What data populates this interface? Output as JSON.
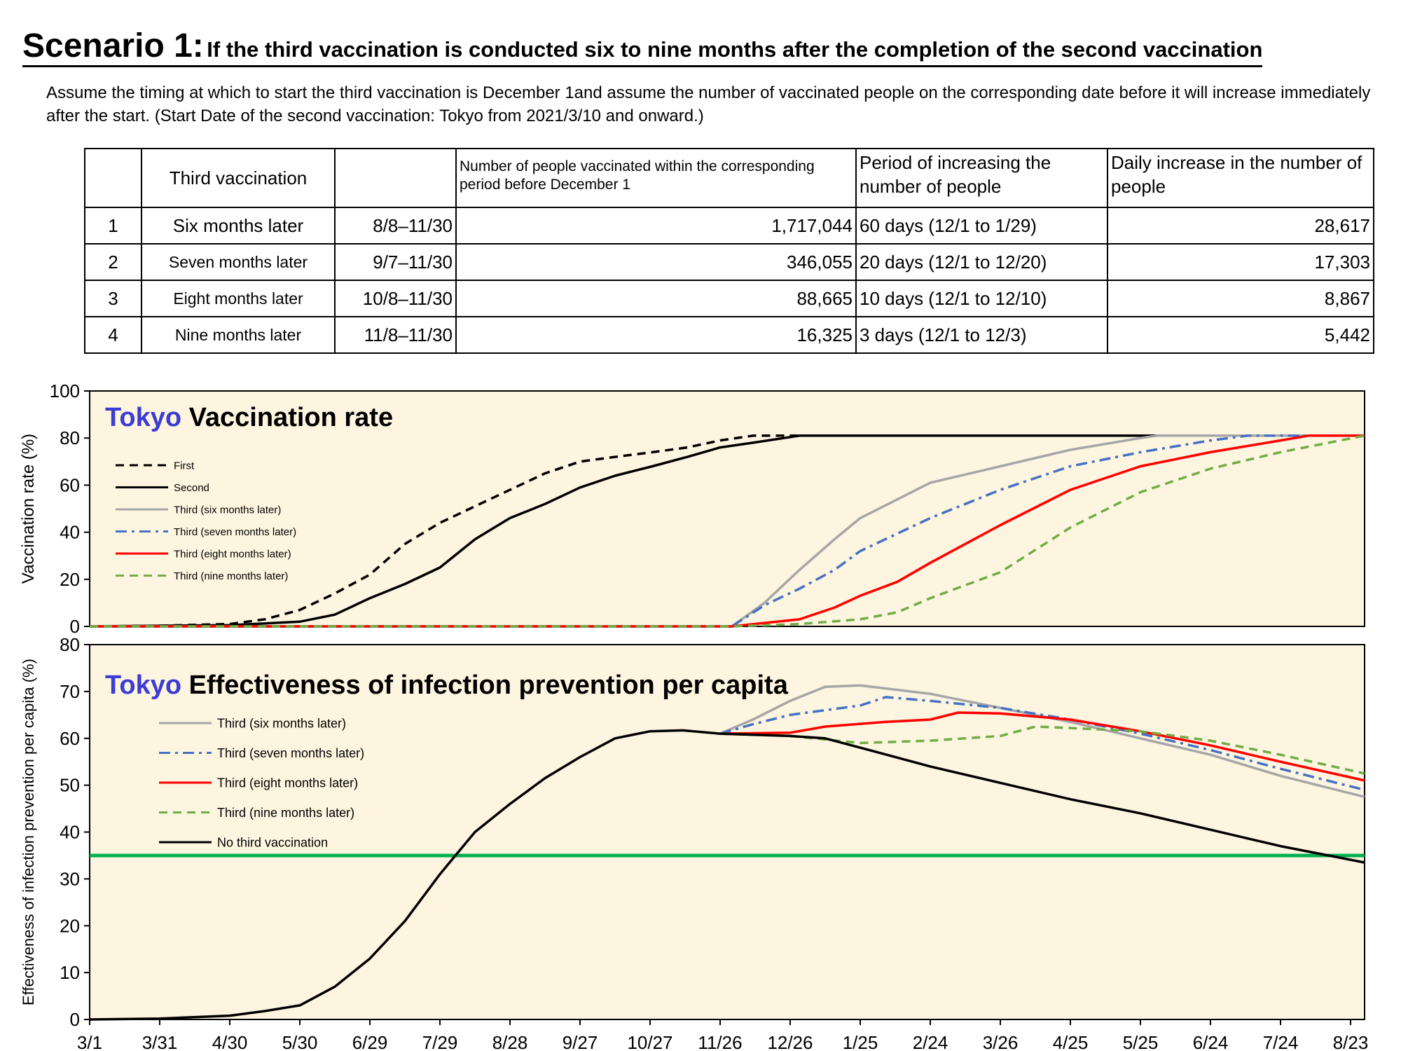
{
  "page": {
    "title_big": "Scenario 1:",
    "title_small": "If the third vaccination is conducted six to nine months after the completion of the second vaccination",
    "description": "Assume the timing at which to start the third vaccination is December 1and assume the number of vaccinated people on the corresponding date before it will increase immediately after the start. (Start Date of the second vaccination: Tokyo from 2021/3/10 and onward.)"
  },
  "table": {
    "headers": [
      "",
      "Third vaccination",
      "",
      "Number of people vaccinated within the corresponding period before December 1",
      "Period of increasing the number of people",
      "Daily increase in the number of people"
    ],
    "rows": [
      [
        "1",
        "Six months later",
        "8/8–11/30",
        "1,717,044",
        "60 days (12/1 to 1/29)",
        "28,617"
      ],
      [
        "2",
        "Seven months later",
        "9/7–11/30",
        "346,055",
        "20 days (12/1 to 12/20)",
        "17,303"
      ],
      [
        "3",
        "Eight months later",
        "10/8–11/30",
        "88,665",
        "10 days (12/1 to 12/10)",
        "8,867"
      ],
      [
        "4",
        "Nine months later",
        "11/8–11/30",
        "16,325",
        "3 days (12/1 to 12/3)",
        "5,442"
      ]
    ]
  },
  "chart_data": [
    {
      "type": "line",
      "title_prefix": "Tokyo",
      "title": "Vaccination rate",
      "ylabel": "Vaccination rate (%)",
      "ylim": [
        0,
        100
      ],
      "yticks": [
        0,
        20,
        40,
        60,
        80,
        100
      ],
      "x_axis_start": "2021-03-01",
      "x_axis_end": "2022-08-29",
      "legend_position": "top-left",
      "grid": false,
      "background": "#fdf5e0",
      "series": [
        {
          "name": "First",
          "color": "#000000",
          "dash": "dashed",
          "points": [
            [
              "2021-03-01",
              0
            ],
            [
              "2021-03-31",
              0.3
            ],
            [
              "2021-04-30",
              1
            ],
            [
              "2021-05-15",
              3
            ],
            [
              "2021-05-30",
              7
            ],
            [
              "2021-06-14",
              14
            ],
            [
              "2021-06-29",
              22
            ],
            [
              "2021-07-14",
              35
            ],
            [
              "2021-07-29",
              44
            ],
            [
              "2021-08-13",
              51
            ],
            [
              "2021-08-28",
              58
            ],
            [
              "2021-09-12",
              65
            ],
            [
              "2021-09-27",
              70
            ],
            [
              "2021-10-12",
              72
            ],
            [
              "2021-10-28",
              74
            ],
            [
              "2021-11-12",
              76
            ],
            [
              "2021-11-26",
              79
            ],
            [
              "2021-12-10",
              81
            ],
            [
              "2022-08-29",
              81
            ]
          ]
        },
        {
          "name": "Second",
          "color": "#000000",
          "dash": "solid",
          "points": [
            [
              "2021-03-01",
              0
            ],
            [
              "2021-04-30",
              0.5
            ],
            [
              "2021-05-30",
              2
            ],
            [
              "2021-06-14",
              5
            ],
            [
              "2021-06-29",
              12
            ],
            [
              "2021-07-14",
              18
            ],
            [
              "2021-07-29",
              25
            ],
            [
              "2021-08-13",
              37
            ],
            [
              "2021-08-28",
              46
            ],
            [
              "2021-09-12",
              52
            ],
            [
              "2021-09-27",
              59
            ],
            [
              "2021-10-12",
              64
            ],
            [
              "2021-10-28",
              68
            ],
            [
              "2021-11-12",
              72
            ],
            [
              "2021-11-26",
              76
            ],
            [
              "2021-12-10",
              78
            ],
            [
              "2021-12-30",
              81
            ],
            [
              "2022-08-29",
              81
            ]
          ]
        },
        {
          "name": "Third (six months later)",
          "color": "#a6a6a6",
          "dash": "solid",
          "points": [
            [
              "2021-03-01",
              0
            ],
            [
              "2021-12-01",
              0
            ],
            [
              "2021-12-15",
              10
            ],
            [
              "2021-12-30",
              24
            ],
            [
              "2022-01-14",
              37
            ],
            [
              "2022-01-25",
              46
            ],
            [
              "2022-02-10",
              54
            ],
            [
              "2022-02-24",
              61
            ],
            [
              "2022-03-26",
              68
            ],
            [
              "2022-04-25",
              75
            ],
            [
              "2022-05-25",
              80
            ],
            [
              "2022-06-01",
              81
            ],
            [
              "2022-08-29",
              81
            ]
          ]
        },
        {
          "name": "Third (seven months later)",
          "color": "#4472c4",
          "dash": "dashdot",
          "points": [
            [
              "2021-03-01",
              0
            ],
            [
              "2021-12-01",
              0
            ],
            [
              "2021-12-15",
              9
            ],
            [
              "2021-12-30",
              16
            ],
            [
              "2022-01-14",
              24
            ],
            [
              "2022-01-25",
              32
            ],
            [
              "2022-02-24",
              46
            ],
            [
              "2022-03-26",
              58
            ],
            [
              "2022-04-25",
              68
            ],
            [
              "2022-05-25",
              74
            ],
            [
              "2022-06-24",
              79
            ],
            [
              "2022-07-10",
              81
            ],
            [
              "2022-08-29",
              81
            ]
          ]
        },
        {
          "name": "Third (eight months later)",
          "color": "#ff0000",
          "dash": "solid",
          "points": [
            [
              "2021-03-01",
              0
            ],
            [
              "2021-12-01",
              0
            ],
            [
              "2021-12-30",
              3
            ],
            [
              "2022-01-14",
              8
            ],
            [
              "2022-01-25",
              13
            ],
            [
              "2022-02-10",
              19
            ],
            [
              "2022-02-24",
              27
            ],
            [
              "2022-03-26",
              43
            ],
            [
              "2022-04-25",
              58
            ],
            [
              "2022-05-25",
              68
            ],
            [
              "2022-06-24",
              74
            ],
            [
              "2022-07-24",
              79
            ],
            [
              "2022-08-05",
              81
            ],
            [
              "2022-08-29",
              81
            ]
          ]
        },
        {
          "name": "Third (nine months later)",
          "color": "#70ad47",
          "dash": "dashed",
          "points": [
            [
              "2021-03-01",
              0
            ],
            [
              "2021-12-01",
              0
            ],
            [
              "2021-12-30",
              1
            ],
            [
              "2022-01-25",
              3
            ],
            [
              "2022-02-10",
              6
            ],
            [
              "2022-02-24",
              12
            ],
            [
              "2022-03-26",
              23
            ],
            [
              "2022-04-25",
              42
            ],
            [
              "2022-05-25",
              57
            ],
            [
              "2022-06-24",
              67
            ],
            [
              "2022-07-24",
              74
            ],
            [
              "2022-08-29",
              81
            ]
          ]
        }
      ]
    },
    {
      "type": "line",
      "title_prefix": "Tokyo",
      "title": "Effectiveness of infection prevention per capita",
      "ylabel": "Effectiveness of infection prevention per capita (%)",
      "ylim": [
        0,
        80
      ],
      "yticks": [
        0,
        10,
        20,
        30,
        40,
        50,
        60,
        70,
        80
      ],
      "x_ticks": [
        "3/1",
        "3/31",
        "4/30",
        "5/30",
        "6/29",
        "7/29",
        "8/28",
        "9/27",
        "10/27",
        "11/26",
        "12/26",
        "1/25",
        "2/24",
        "3/26",
        "4/25",
        "5/25",
        "6/24",
        "7/24",
        "8/23"
      ],
      "x_tick_dates": [
        "2021-03-01",
        "2021-03-31",
        "2021-04-30",
        "2021-05-30",
        "2021-06-29",
        "2021-07-29",
        "2021-08-28",
        "2021-09-27",
        "2021-10-27",
        "2021-11-26",
        "2021-12-26",
        "2022-01-25",
        "2022-02-24",
        "2022-03-26",
        "2022-04-25",
        "2022-05-25",
        "2022-06-24",
        "2022-07-24",
        "2022-08-23"
      ],
      "x_axis_start": "2021-03-01",
      "x_axis_end": "2022-08-29",
      "legend_position": "top-left",
      "grid": false,
      "background": "#fdf5e0",
      "reference_line": {
        "value": 35,
        "color": "#00b050"
      },
      "series": [
        {
          "name": "Third (six months later)",
          "color": "#a6a6a6",
          "dash": "solid",
          "points": [
            [
              "2021-11-26",
              61
            ],
            [
              "2021-12-10",
              64
            ],
            [
              "2021-12-26",
              68
            ],
            [
              "2022-01-10",
              71
            ],
            [
              "2022-01-25",
              71.3
            ],
            [
              "2022-02-24",
              69.5
            ],
            [
              "2022-03-26",
              66.5
            ],
            [
              "2022-04-25",
              63.5
            ],
            [
              "2022-05-25",
              60
            ],
            [
              "2022-06-24",
              56.5
            ],
            [
              "2022-07-24",
              52
            ],
            [
              "2022-08-29",
              47.5
            ]
          ]
        },
        {
          "name": "Third (seven months later)",
          "color": "#4472c4",
          "dash": "dashdot",
          "points": [
            [
              "2021-11-26",
              61
            ],
            [
              "2021-12-10",
              63
            ],
            [
              "2021-12-26",
              65
            ],
            [
              "2022-01-25",
              67
            ],
            [
              "2022-02-05",
              68.8
            ],
            [
              "2022-02-24",
              68
            ],
            [
              "2022-03-26",
              66.5
            ],
            [
              "2022-04-25",
              64
            ],
            [
              "2022-05-25",
              61
            ],
            [
              "2022-06-24",
              57.5
            ],
            [
              "2022-07-24",
              53.5
            ],
            [
              "2022-08-29",
              49
            ]
          ]
        },
        {
          "name": "Third (eight months later)",
          "color": "#ff0000",
          "dash": "solid",
          "points": [
            [
              "2021-11-26",
              61
            ],
            [
              "2021-12-26",
              61.2
            ],
            [
              "2022-01-10",
              62.5
            ],
            [
              "2022-02-05",
              63.5
            ],
            [
              "2022-02-24",
              64
            ],
            [
              "2022-03-08",
              65.5
            ],
            [
              "2022-03-26",
              65.3
            ],
            [
              "2022-04-25",
              64
            ],
            [
              "2022-05-25",
              61.5
            ],
            [
              "2022-06-24",
              58.5
            ],
            [
              "2022-07-24",
              55
            ],
            [
              "2022-08-29",
              51
            ]
          ]
        },
        {
          "name": "Third (nine months later)",
          "color": "#70ad47",
          "dash": "dashed",
          "points": [
            [
              "2021-11-26",
              61
            ],
            [
              "2021-12-26",
              60.5
            ],
            [
              "2022-01-25",
              59
            ],
            [
              "2022-02-24",
              59.5
            ],
            [
              "2022-03-26",
              60.5
            ],
            [
              "2022-04-10",
              62.5
            ],
            [
              "2022-04-25",
              62.2
            ],
            [
              "2022-05-25",
              61.5
            ],
            [
              "2022-06-24",
              59.5
            ],
            [
              "2022-07-24",
              56.5
            ],
            [
              "2022-08-29",
              52.5
            ]
          ]
        },
        {
          "name": "No third vaccination",
          "color": "#000000",
          "dash": "solid",
          "points": [
            [
              "2021-03-01",
              0
            ],
            [
              "2021-03-31",
              0.2
            ],
            [
              "2021-04-30",
              0.8
            ],
            [
              "2021-05-15",
              1.8
            ],
            [
              "2021-05-30",
              3
            ],
            [
              "2021-06-14",
              7
            ],
            [
              "2021-06-29",
              13
            ],
            [
              "2021-07-14",
              21
            ],
            [
              "2021-07-29",
              31
            ],
            [
              "2021-08-13",
              40
            ],
            [
              "2021-08-28",
              46
            ],
            [
              "2021-09-12",
              51.5
            ],
            [
              "2021-09-27",
              56
            ],
            [
              "2021-10-12",
              60
            ],
            [
              "2021-10-27",
              61.5
            ],
            [
              "2021-11-10",
              61.7
            ],
            [
              "2021-11-26",
              61
            ],
            [
              "2021-12-26",
              60.5
            ],
            [
              "2022-01-10",
              60
            ],
            [
              "2022-01-25",
              58
            ],
            [
              "2022-02-24",
              54
            ],
            [
              "2022-03-26",
              50.5
            ],
            [
              "2022-04-25",
              47
            ],
            [
              "2022-05-25",
              44
            ],
            [
              "2022-06-24",
              40.5
            ],
            [
              "2022-07-24",
              37
            ],
            [
              "2022-08-29",
              33.5
            ]
          ]
        }
      ]
    }
  ]
}
